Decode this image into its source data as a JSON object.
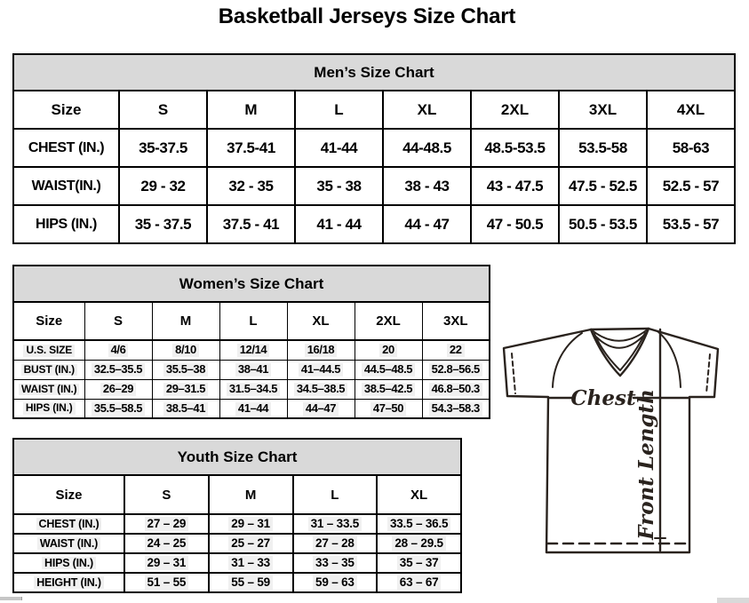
{
  "page": {
    "title": "Basketball Jerseys Size Chart"
  },
  "tables": {
    "men": {
      "title": "Men’s Size Chart",
      "columns": [
        "Size",
        "S",
        "M",
        "L",
        "XL",
        "2XL",
        "3XL",
        "4XL"
      ],
      "rows": [
        {
          "label": "CHEST (IN.)",
          "values": [
            "35-37.5",
            "37.5-41",
            "41-44",
            "44-48.5",
            "48.5-53.5",
            "53.5-58",
            "58-63"
          ]
        },
        {
          "label": "WAIST(IN.)",
          "values": [
            "29 - 32",
            "32 - 35",
            "35 - 38",
            "38 - 43",
            "43 - 47.5",
            "47.5 - 52.5",
            "52.5 - 57"
          ]
        },
        {
          "label": "HIPS (IN.)",
          "values": [
            "35 - 37.5",
            "37.5 - 41",
            "41 - 44",
            "44 - 47",
            "47 - 50.5",
            "50.5 - 53.5",
            "53.5 - 57"
          ]
        }
      ]
    },
    "women": {
      "title": "Women’s Size Chart",
      "columns": [
        "Size",
        "S",
        "M",
        "L",
        "XL",
        "2XL",
        "3XL"
      ],
      "rows": [
        {
          "label": "U.S. SIZE",
          "values": [
            "4/6",
            "8/10",
            "12/14",
            "16/18",
            "20",
            "22"
          ]
        },
        {
          "label": "BUST (IN.)",
          "values": [
            "32.5–35.5",
            "35.5–38",
            "38–41",
            "41–44.5",
            "44.5–48.5",
            "52.8–56.5"
          ]
        },
        {
          "label": "WAIST (IN.)",
          "values": [
            "26–29",
            "29–31.5",
            "31.5–34.5",
            "34.5–38.5",
            "38.5–42.5",
            "46.8–50.3"
          ]
        },
        {
          "label": "HIPS (IN.)",
          "values": [
            "35.5–58.5",
            "38.5–41",
            "41–44",
            "44–47",
            "47–50",
            "54.3–58.3"
          ]
        }
      ]
    },
    "youth": {
      "title": "Youth Size Chart",
      "columns": [
        "Size",
        "S",
        "M",
        "L",
        "XL"
      ],
      "rows": [
        {
          "label": "CHEST (IN.)",
          "values": [
            "27 – 29",
            "29 – 31",
            "31 – 33.5",
            "33.5 – 36.5"
          ]
        },
        {
          "label": "WAIST (IN.)",
          "values": [
            "24 – 25",
            "25 – 27",
            "27 – 28",
            "28 – 29.5"
          ]
        },
        {
          "label": "HIPS (IN.)",
          "values": [
            "29 – 31",
            "31 – 33",
            "33 – 35",
            "35 – 37"
          ]
        },
        {
          "label": "HEIGHT (IN.)",
          "values": [
            "51 – 55",
            "55 – 59",
            "59 – 63",
            "63 – 67"
          ]
        }
      ]
    }
  },
  "diagram": {
    "chest_label": "Chest",
    "front_length_label": "Front Length"
  },
  "colors": {
    "band_background": "#d9d9d9",
    "table_border": "#000000",
    "jersey_line": "#2a231e"
  }
}
